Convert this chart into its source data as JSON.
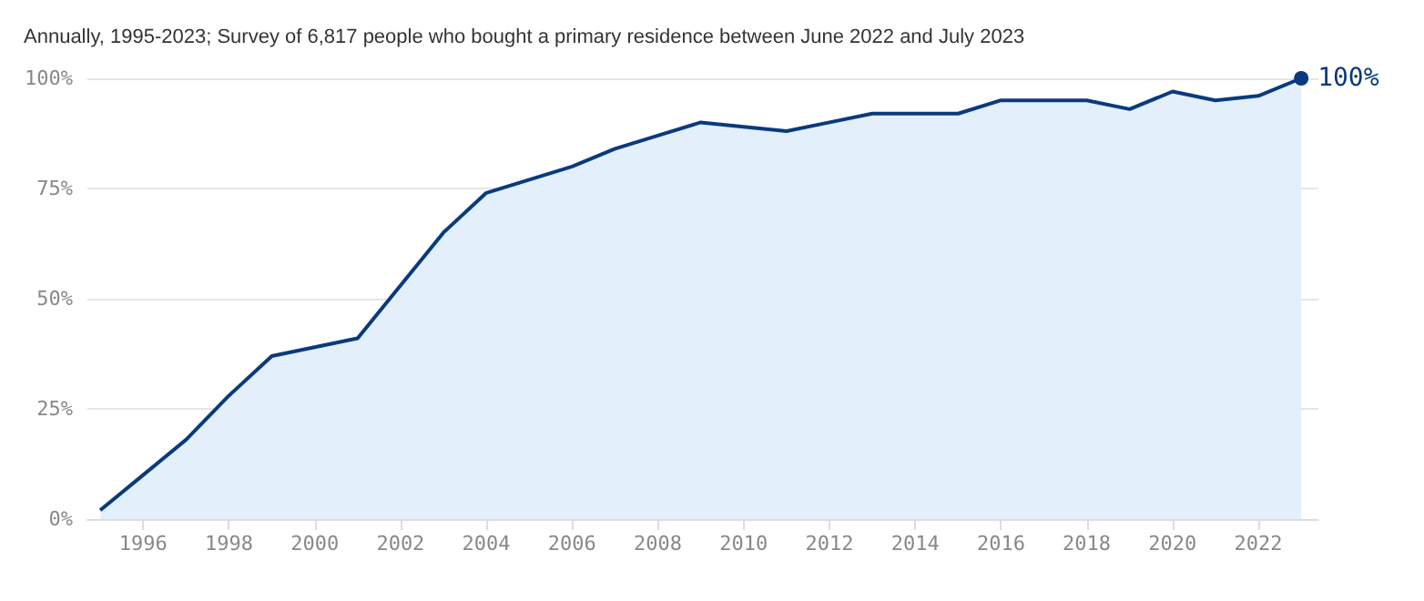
{
  "chart_data": {
    "type": "area",
    "title": "Annually, 1995-2023; Survey of 6,817 people who bought a primary residence between June 2022 and July 2023",
    "x": [
      1995,
      1996,
      1997,
      1998,
      1999,
      2000,
      2001,
      2002,
      2003,
      2004,
      2005,
      2006,
      2007,
      2008,
      2009,
      2010,
      2011,
      2012,
      2013,
      2014,
      2015,
      2016,
      2017,
      2018,
      2019,
      2020,
      2021,
      2022,
      2023
    ],
    "series": [
      {
        "color": "#0a3a7e",
        "values": [
          2,
          10,
          18,
          28,
          37,
          39,
          41,
          53,
          65,
          74,
          77,
          80,
          84,
          87,
          90,
          89,
          88,
          90,
          92,
          92,
          92,
          95,
          95,
          95,
          93,
          97,
          95,
          96,
          100
        ],
        "value_labels": [
          null,
          null,
          null,
          null,
          null,
          null,
          null,
          null,
          null,
          null,
          null,
          null,
          null,
          null,
          null,
          null,
          null,
          null,
          null,
          null,
          null,
          null,
          null,
          null,
          null,
          null,
          null,
          null,
          "100%"
        ]
      }
    ],
    "xlim": [
      1994.7,
      2023.4
    ],
    "xticks": [
      1996,
      1998,
      2000,
      2002,
      2004,
      2006,
      2008,
      2010,
      2012,
      2014,
      2016,
      2018,
      2020,
      2022
    ],
    "ylim": [
      0,
      100
    ],
    "yticks": [
      {
        "value": 0,
        "label": "0%"
      },
      {
        "value": 25,
        "label": "25%"
      },
      {
        "value": 50,
        "label": "50%"
      },
      {
        "value": 75,
        "label": "75%"
      },
      {
        "value": 100,
        "label": "100%"
      }
    ],
    "grid": "y"
  }
}
